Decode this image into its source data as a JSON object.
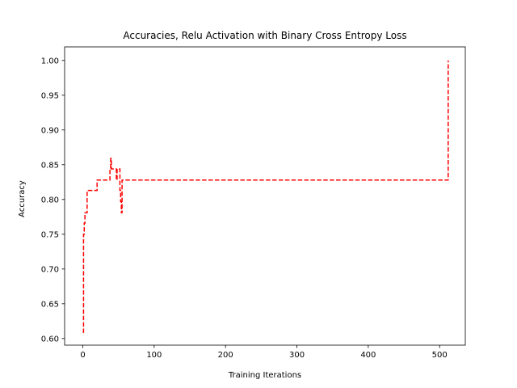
{
  "chart_data": {
    "type": "line",
    "title": "Accuracies, Relu Activation with Binary Cross Entropy Loss",
    "xlabel": "Training Iterations",
    "ylabel": "Accuracy",
    "xlim": [
      -25.5,
      536
    ],
    "ylim": [
      0.5905,
      1.0195
    ],
    "xticks": [
      0,
      100,
      200,
      300,
      400,
      500
    ],
    "xtick_labels": [
      "0",
      "100",
      "200",
      "300",
      "400",
      "500"
    ],
    "yticks": [
      0.6,
      0.65,
      0.7,
      0.75,
      0.8,
      0.85,
      0.9,
      0.95,
      1.0
    ],
    "ytick_labels": [
      "0.60",
      "0.65",
      "0.70",
      "0.75",
      "0.80",
      "0.85",
      "0.90",
      "0.95",
      "1.00"
    ],
    "grid": false,
    "legend": false,
    "series": [
      {
        "color": "#ff0000",
        "line_style": "dashed",
        "drawstyle": "steps",
        "x": [
          0,
          1,
          2,
          3,
          4,
          5,
          6,
          8,
          10,
          12,
          15,
          18,
          20,
          22,
          25,
          30,
          35,
          38,
          39,
          40,
          41,
          42,
          43,
          44,
          45,
          46,
          47,
          48,
          49,
          50,
          51,
          52,
          53,
          54,
          55,
          56,
          57,
          60,
          100,
          200,
          300,
          400,
          500,
          509,
          510,
          511,
          512
        ],
        "y": [
          0.609,
          0.75,
          0.766,
          0.781,
          0.781,
          0.781,
          0.813,
          0.813,
          0.813,
          0.813,
          0.813,
          0.813,
          0.828,
          0.828,
          0.828,
          0.828,
          0.828,
          0.844,
          0.859,
          0.844,
          0.844,
          0.844,
          0.844,
          0.844,
          0.844,
          0.844,
          0.828,
          0.844,
          0.844,
          0.844,
          0.844,
          0.813,
          0.797,
          0.781,
          0.828,
          0.828,
          0.828,
          0.828,
          0.828,
          0.828,
          0.828,
          0.828,
          0.828,
          0.828,
          0.828,
          0.828,
          1.0
        ]
      }
    ]
  }
}
